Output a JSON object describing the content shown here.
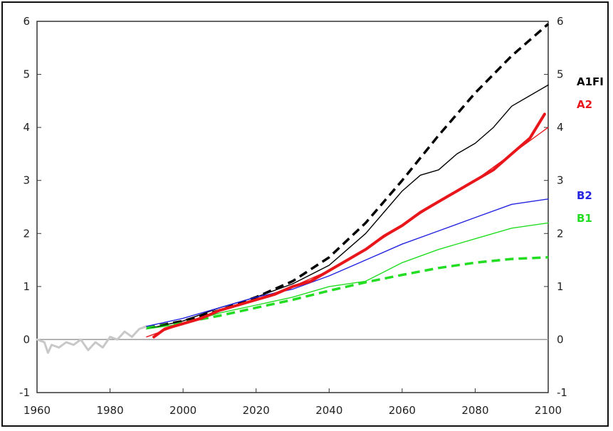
{
  "chart_data": {
    "type": "line",
    "title": "",
    "xlabel": "",
    "ylabel": "",
    "xlim": [
      1960,
      2100
    ],
    "ylim": [
      -1,
      6
    ],
    "x_ticks": [
      1960,
      1980,
      2000,
      2020,
      2040,
      2060,
      2080,
      2100
    ],
    "y_ticks": [
      -1,
      0,
      1,
      2,
      3,
      4,
      5,
      6
    ],
    "grid": false,
    "zero_line": true,
    "legend_position": "right",
    "legend": [
      {
        "label": "A1FI",
        "color": "#000000"
      },
      {
        "label": "A2",
        "color": "#e8161b"
      },
      {
        "label": "B2",
        "color": "#2323e0"
      },
      {
        "label": "B1",
        "color": "#22dd22"
      }
    ],
    "series": [
      {
        "color": "#c8c8c8",
        "style": "solid",
        "x": [
          1960,
          1962,
          1963,
          1964,
          1966,
          1968,
          1970,
          1972,
          1974,
          1976,
          1978,
          1980,
          1982,
          1984,
          1986,
          1988,
          1990
        ],
        "y": [
          0.0,
          -0.05,
          -0.25,
          -0.1,
          -0.15,
          -0.05,
          -0.1,
          0.0,
          -0.2,
          -0.05,
          -0.15,
          0.05,
          0.0,
          0.15,
          0.05,
          0.2,
          0.25
        ]
      },
      {
        "name": "A1FI",
        "color": "#000000",
        "style": "dashed",
        "x": [
          1990,
          2000,
          2010,
          2020,
          2030,
          2040,
          2050,
          2060,
          2070,
          2080,
          2090,
          2100
        ],
        "y": [
          0.22,
          0.35,
          0.55,
          0.8,
          1.1,
          1.55,
          2.2,
          3.0,
          3.85,
          4.65,
          5.35,
          5.95
        ]
      },
      {
        "name": "B1",
        "color": "#22dd22",
        "style": "dashed",
        "x": [
          1990,
          2000,
          2010,
          2020,
          2030,
          2040,
          2050,
          2060,
          2070,
          2080,
          2090,
          2100
        ],
        "y": [
          0.22,
          0.32,
          0.45,
          0.6,
          0.75,
          0.92,
          1.08,
          1.22,
          1.35,
          1.45,
          1.52,
          1.55
        ]
      },
      {
        "name": "A1FI",
        "color": "#000000",
        "style": "solid",
        "x": [
          1990,
          2000,
          2010,
          2020,
          2030,
          2040,
          2045,
          2050,
          2055,
          2060,
          2065,
          2070,
          2075,
          2080,
          2085,
          2090,
          2095,
          2100
        ],
        "y": [
          0.2,
          0.35,
          0.6,
          0.8,
          1.05,
          1.4,
          1.7,
          2.0,
          2.4,
          2.8,
          3.1,
          3.2,
          3.5,
          3.7,
          4.0,
          4.4,
          4.6,
          4.8
        ]
      },
      {
        "name": "A2",
        "color": "#e8161b",
        "style": "thin",
        "x": [
          1990,
          2000,
          2010,
          2020,
          2030,
          2040,
          2050,
          2060,
          2070,
          2080,
          2090,
          2100
        ],
        "y": [
          0.05,
          0.3,
          0.55,
          0.75,
          1.0,
          1.3,
          1.7,
          2.15,
          2.6,
          3.0,
          3.5,
          4.0
        ]
      },
      {
        "name": "B2",
        "color": "#2323e0",
        "style": "solid",
        "x": [
          1990,
          2000,
          2010,
          2020,
          2030,
          2040,
          2050,
          2060,
          2070,
          2080,
          2090,
          2100
        ],
        "y": [
          0.25,
          0.4,
          0.6,
          0.8,
          0.95,
          1.2,
          1.5,
          1.8,
          2.05,
          2.3,
          2.55,
          2.65
        ]
      },
      {
        "name": "B1",
        "color": "#22dd22",
        "style": "solid",
        "x": [
          1990,
          2000,
          2010,
          2020,
          2030,
          2040,
          2050,
          2060,
          2070,
          2080,
          2090,
          2100
        ],
        "y": [
          0.2,
          0.3,
          0.5,
          0.65,
          0.8,
          1.0,
          1.1,
          1.45,
          1.7,
          1.9,
          2.1,
          2.2
        ]
      },
      {
        "name": "A2",
        "color": "#e8161b",
        "style": "thick",
        "x": [
          1992,
          1995,
          2000,
          2005,
          2010,
          2015,
          2020,
          2025,
          2030,
          2035,
          2040,
          2045,
          2050,
          2055,
          2060,
          2065,
          2070,
          2075,
          2080,
          2085,
          2090,
          2095,
          2099
        ],
        "y": [
          0.05,
          0.2,
          0.3,
          0.4,
          0.55,
          0.65,
          0.75,
          0.85,
          1.0,
          1.1,
          1.3,
          1.5,
          1.7,
          1.95,
          2.15,
          2.4,
          2.6,
          2.8,
          3.0,
          3.2,
          3.5,
          3.8,
          4.25
        ]
      }
    ],
    "annotations": [
      "A1FI",
      "A2",
      "B2",
      "B1"
    ]
  }
}
